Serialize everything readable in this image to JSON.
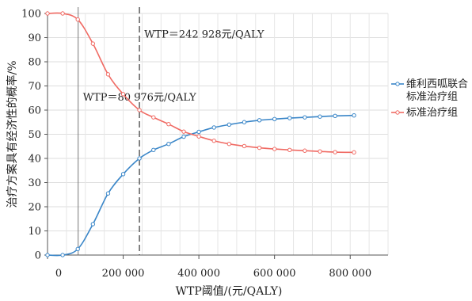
{
  "chart_data": {
    "type": "line",
    "xlabel": "WTP阈值/(元/QALY)",
    "ylabel": "治疗方案具有经济性的概率/%",
    "xlim": [
      0,
      900000
    ],
    "ylim": [
      0,
      100
    ],
    "x_ticks": [
      0,
      200000,
      400000,
      600000,
      800000
    ],
    "x_tick_labels": [
      "0",
      "200 000",
      "400 000",
      "600 000",
      "800 000"
    ],
    "y_ticks": [
      0,
      10,
      20,
      30,
      40,
      50,
      60,
      70,
      80,
      90,
      100
    ],
    "y_tick_labels": [
      "0",
      "10",
      "20",
      "30",
      "40",
      "50",
      "60",
      "70",
      "80",
      "90",
      "100"
    ],
    "grid": true,
    "legend_position": "right",
    "series": [
      {
        "name": "维利西呱联合标准治疗组",
        "legend_lines": [
          "维利西呱联合",
          "标准治疗组"
        ],
        "color": "#3a86c8",
        "x": [
          0,
          40000,
          80000,
          120000,
          160000,
          200000,
          242928,
          280000,
          320000,
          360000,
          400000,
          440000,
          480000,
          520000,
          560000,
          600000,
          640000,
          680000,
          720000,
          760000,
          810000
        ],
        "y": [
          0,
          0,
          2.5,
          12.8,
          25.5,
          33.5,
          40,
          43.5,
          46,
          49,
          51,
          52.8,
          54,
          55,
          55.8,
          56.3,
          56.7,
          57,
          57.3,
          57.6,
          57.8
        ]
      },
      {
        "name": "标准治疗组",
        "legend_lines": [
          "标准治疗组"
        ],
        "color": "#f06a63",
        "x": [
          0,
          40000,
          80000,
          120000,
          160000,
          200000,
          242928,
          280000,
          320000,
          360000,
          400000,
          440000,
          480000,
          520000,
          560000,
          600000,
          640000,
          680000,
          720000,
          760000,
          810000
        ],
        "y": [
          100,
          100,
          97.5,
          87.5,
          74.8,
          66.6,
          60,
          57,
          54.2,
          51.1,
          49.1,
          47.3,
          46,
          45.1,
          44.4,
          43.9,
          43.5,
          43.2,
          42.9,
          42.6,
          42.5
        ]
      }
    ],
    "reference_lines": [
      {
        "x": 80976,
        "label": "WTP＝80 976元/QALY",
        "style": "solid",
        "label_y": 64
      },
      {
        "x": 242928,
        "label": "WTP＝242 928元/QALY",
        "style": "dashed",
        "label_y": 90
      }
    ]
  }
}
